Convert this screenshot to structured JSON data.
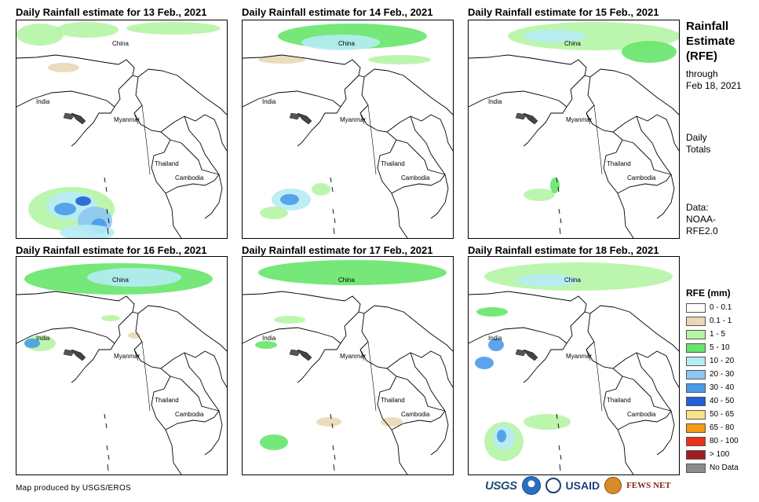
{
  "panels": [
    {
      "title": "Daily Rainfall estimate for 13 Feb., 2021"
    },
    {
      "title": "Daily Rainfall estimate for 14 Feb., 2021"
    },
    {
      "title": "Daily Rainfall estimate for 15 Feb., 2021"
    },
    {
      "title": "Daily Rainfall estimate for 16 Feb., 2021"
    },
    {
      "title": "Daily Rainfall estimate for 17 Feb., 2021"
    },
    {
      "title": "Daily Rainfall estimate for 18 Feb., 2021"
    }
  ],
  "map_labels": {
    "china": "China",
    "india": "India",
    "myanmar": "Myanmar",
    "thailand": "Thailand",
    "cambodia": "Cambodia"
  },
  "sidebar": {
    "title_line1": "Rainfall",
    "title_line2": "Estimate",
    "title_line3": "(RFE)",
    "through": "through",
    "date": "Feb 18, 2021",
    "daily": "Daily",
    "totals": "Totals",
    "data_label": "Data:",
    "data_source1": "NOAA-",
    "data_source2": "RFE2.0"
  },
  "legend": {
    "title": "RFE (mm)",
    "items": [
      {
        "label": "0 - 0.1",
        "color": "#ffffff"
      },
      {
        "label": "0.1 - 1",
        "color": "#e8d8b5"
      },
      {
        "label": "1 - 5",
        "color": "#b5f5a5"
      },
      {
        "label": "5 - 10",
        "color": "#66e56a"
      },
      {
        "label": "10 - 20",
        "color": "#b6ecf5"
      },
      {
        "label": "20 - 30",
        "color": "#8ec5f2"
      },
      {
        "label": "30 - 40",
        "color": "#4a9bea"
      },
      {
        "label": "40 - 50",
        "color": "#1f5fd8"
      },
      {
        "label": "50 - 65",
        "color": "#f7e38a"
      },
      {
        "label": "65 - 80",
        "color": "#f59a16"
      },
      {
        "label": "80 - 100",
        "color": "#e8321c"
      },
      {
        "label": "> 100",
        "color": "#a11d1d"
      },
      {
        "label": "No Data",
        "color": "#8c8c8c"
      }
    ]
  },
  "footer": {
    "credit": "Map produced by USGS/EROS",
    "logo_usgs": "USGS",
    "logo_usaid": "USAID",
    "logo_fews": "FEWS NET"
  }
}
